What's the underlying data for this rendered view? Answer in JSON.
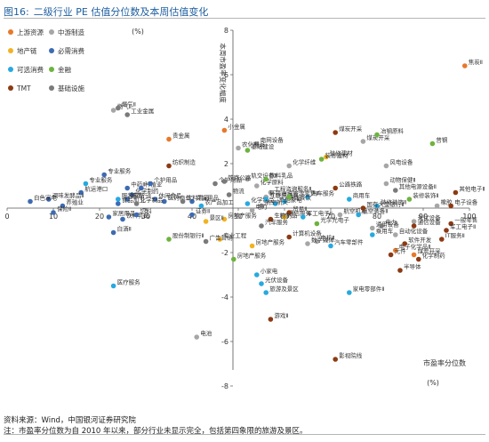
{
  "figure": {
    "label": "图16:",
    "title": "二级行业 PE 估值分位数及本周估值变化"
  },
  "notes": {
    "source": "资料来源：Wind，中国银河证券研究院",
    "remark": "注：市盈率分位数为自 2010 年以来，部分行业未显示完全，包括第四象限的旅游及景区。"
  },
  "colors": {
    "上游资源": "#e8782a",
    "中游制造": "#a6a6a6",
    "地产链": "#f0b323",
    "必需消费": "#3d6bb3",
    "可选消费": "#27a9e0",
    "金融": "#6db33f",
    "TMT": "#8c3a14",
    "基础设施": "#7a7a7a"
  },
  "chart_data": {
    "type": "scatter",
    "xlabel": "市盈率分位数",
    "xunit": "(%)",
    "ylabel": "本周市盈率变化幅度",
    "yunit": "(%)",
    "xlim": [
      0,
      100
    ],
    "ylim": [
      -8,
      8
    ],
    "xticks": [
      0,
      10,
      20,
      30,
      40,
      50,
      60,
      70,
      80,
      90,
      100
    ],
    "yticks": [
      -8,
      -6,
      -4,
      -2,
      0,
      2,
      4,
      6,
      8
    ],
    "grid": false,
    "legend_position": "top-left",
    "series": [
      {
        "name": "上游资源",
        "points": [
          {
            "x": 99,
            "y": 6.4,
            "label": "焦炭Ⅱ"
          },
          {
            "x": 35,
            "y": 3.1,
            "label": "贵金属"
          },
          {
            "x": 47,
            "y": 3.5,
            "label": "小金属"
          },
          {
            "x": 84,
            "y": -1.9,
            "label": "电子化学品Ⅱ"
          },
          {
            "x": 88,
            "y": -2.1,
            "label": "煤炭开采"
          }
        ]
      },
      {
        "name": "中游制造",
        "points": [
          {
            "x": 23,
            "y": 4.4,
            "label": "燃气Ⅱ"
          },
          {
            "x": 77,
            "y": 3.0,
            "label": "煤炭开采"
          },
          {
            "x": 54,
            "y": 2.9,
            "label": "电网设备"
          },
          {
            "x": 50,
            "y": 2.7,
            "label": "农化制品"
          },
          {
            "x": 61,
            "y": 1.9,
            "label": "化学纤维"
          },
          {
            "x": 82,
            "y": 1.9,
            "label": "风电设备"
          },
          {
            "x": 52,
            "y": 1.3,
            "label": "轨交设备Ⅱ"
          },
          {
            "x": 54,
            "y": 1.0,
            "label": "化学原料"
          },
          {
            "x": 57,
            "y": 0.7,
            "label": "工程咨询服务Ⅱ"
          },
          {
            "x": 82,
            "y": 1.1,
            "label": "动物保健Ⅱ"
          },
          {
            "x": 56,
            "y": 0.5,
            "label": "环境治理"
          },
          {
            "x": 53,
            "y": -0.1,
            "label": "电力"
          },
          {
            "x": 93,
            "y": 0.1,
            "label": "橡胶"
          },
          {
            "x": 72,
            "y": -0.3,
            "label": "航空机场"
          },
          {
            "x": 88,
            "y": -0.6,
            "label": "光伏设备"
          },
          {
            "x": 79,
            "y": -0.9,
            "label": "通用设备"
          },
          {
            "x": 84,
            "y": -1.2,
            "label": "自动化设备"
          },
          {
            "x": 67,
            "y": -1.5,
            "label": "电机Ⅱ"
          },
          {
            "x": 65,
            "y": -1.6,
            "label": "数字媒体"
          },
          {
            "x": 41,
            "y": -5.8,
            "label": "电池"
          }
        ]
      },
      {
        "name": "地产链",
        "points": [
          {
            "x": 69,
            "y": 2.3,
            "label": "装修建材"
          },
          {
            "x": 47,
            "y": -0.5,
            "label": "房地产服务"
          },
          {
            "x": 53,
            "y": -1.7,
            "label": "房地产服务"
          },
          {
            "x": 60,
            "y": -0.4,
            "label": "通信服务"
          },
          {
            "x": 43,
            "y": -0.6,
            "label": "景区Ⅱ"
          },
          {
            "x": 46,
            "y": -1.4,
            "label": "专业工程"
          }
        ]
      },
      {
        "name": "必需消费",
        "points": [
          {
            "x": 21,
            "y": 1.5,
            "label": "专业服务"
          },
          {
            "x": 16,
            "y": 0.7,
            "label": "航运港口"
          },
          {
            "x": 9,
            "y": 0.4,
            "label": "调味发酵品Ⅱ"
          },
          {
            "x": 5,
            "y": 0.3,
            "label": "白色家电"
          },
          {
            "x": 26,
            "y": 0.9,
            "label": "中药Ⅱ"
          },
          {
            "x": 27,
            "y": 0.6,
            "label": "化学制药"
          },
          {
            "x": 29,
            "y": 0.9,
            "label": "种植业"
          },
          {
            "x": 31,
            "y": 1.1,
            "label": "个护用品"
          },
          {
            "x": 32,
            "y": 0.4,
            "label": "休闲食品"
          },
          {
            "x": 26,
            "y": 0.4,
            "label": "城商行Ⅱ"
          },
          {
            "x": 24,
            "y": 0.2,
            "label": "食品加工"
          },
          {
            "x": 12,
            "y": 0.1,
            "label": "养殖业"
          },
          {
            "x": 10,
            "y": -0.2,
            "label": "保险Ⅱ"
          },
          {
            "x": 22,
            "y": -0.4,
            "label": "家居用品"
          },
          {
            "x": 25,
            "y": -0.5,
            "label": "饮料乳品"
          },
          {
            "x": 28,
            "y": -0.3,
            "label": "饲料"
          },
          {
            "x": 34,
            "y": 0.3,
            "label": "医药商业"
          },
          {
            "x": 40,
            "y": -0.3,
            "label": "证券Ⅱ"
          },
          {
            "x": 40,
            "y": 0.3,
            "label": "文娱用品"
          },
          {
            "x": 23,
            "y": -1.1,
            "label": "白酒Ⅱ"
          }
        ]
      },
      {
        "name": "可选消费",
        "points": [
          {
            "x": 17,
            "y": 1.1,
            "label": "专业服务"
          },
          {
            "x": 24,
            "y": 0.4,
            "label": "服装家纺"
          },
          {
            "x": 42,
            "y": 0.1,
            "label": "农产品加工"
          },
          {
            "x": 52,
            "y": 0.2,
            "label": "化学制品"
          },
          {
            "x": 56,
            "y": 0.4,
            "label": "互联网电商"
          },
          {
            "x": 58,
            "y": 0.2,
            "label": "黑色家电"
          },
          {
            "x": 65,
            "y": 0.5,
            "label": "汽车服务"
          },
          {
            "x": 74,
            "y": 0.4,
            "label": "商用车"
          },
          {
            "x": 80,
            "y": 0.1,
            "label": "装修装饰Ⅱ"
          },
          {
            "x": 64,
            "y": -0.4,
            "label": "军工电子Ⅱ"
          },
          {
            "x": 76,
            "y": -0.3,
            "label": "航空装备Ⅱ"
          },
          {
            "x": 79,
            "y": -1.2,
            "label": "乘用车"
          },
          {
            "x": 70,
            "y": -1.7,
            "label": "汽车零部件"
          },
          {
            "x": 54,
            "y": -3.0,
            "label": "小家电"
          },
          {
            "x": 55,
            "y": -3.4,
            "label": "光伏设备"
          },
          {
            "x": 56,
            "y": -3.8,
            "label": "旅游及景区"
          },
          {
            "x": 74,
            "y": -3.8,
            "label": "家电零部件Ⅱ"
          },
          {
            "x": 23,
            "y": -3.5,
            "label": "医疗服务"
          },
          {
            "x": 60,
            "y": 0.3,
            "label": "酒店餐饮"
          }
        ]
      },
      {
        "name": "金融",
        "points": [
          {
            "x": 92,
            "y": 2.9,
            "label": "普钢"
          },
          {
            "x": 80,
            "y": 3.3,
            "label": "冶钢原料"
          },
          {
            "x": 68,
            "y": 2.2,
            "label": "装修建材"
          },
          {
            "x": 52,
            "y": 2.6,
            "label": "基础建设"
          },
          {
            "x": 56,
            "y": 1.3,
            "label": "饮料乳品"
          },
          {
            "x": 61,
            "y": 0.5,
            "label": "旅游零售Ⅱ"
          },
          {
            "x": 87,
            "y": 0.4,
            "label": "装修装饰Ⅱ"
          },
          {
            "x": 67,
            "y": -0.7,
            "label": "光学光电子"
          },
          {
            "x": 49,
            "y": -2.3,
            "label": "房地产服务"
          },
          {
            "x": 35,
            "y": -1.4,
            "label": "股份制银行Ⅱ"
          }
        ]
      },
      {
        "name": "TMT",
        "points": [
          {
            "x": 71,
            "y": 3.4,
            "label": "煤炭开采"
          },
          {
            "x": 35,
            "y": 1.9,
            "label": "纺织制造"
          },
          {
            "x": 71,
            "y": 0.9,
            "label": "公路铁路"
          },
          {
            "x": 77,
            "y": 0.0,
            "label": "国有大型银行Ⅱ"
          },
          {
            "x": 61,
            "y": -0.2,
            "label": "贸易Ⅱ"
          },
          {
            "x": 57,
            "y": -0.5,
            "label": "生物制品"
          },
          {
            "x": 61,
            "y": -1.3,
            "label": "计算机设备"
          },
          {
            "x": 83,
            "y": -2.1,
            "label": "元件"
          },
          {
            "x": 85,
            "y": -2.8,
            "label": "半导体"
          },
          {
            "x": 57,
            "y": -5.0,
            "label": "游戏Ⅱ"
          },
          {
            "x": 71,
            "y": -6.8,
            "label": "影视院线"
          },
          {
            "x": 94,
            "y": -1.4,
            "label": "IT服务Ⅱ"
          },
          {
            "x": 86,
            "y": -1.6,
            "label": "软件开发"
          },
          {
            "x": 88,
            "y": -0.8,
            "label": "通信设备"
          },
          {
            "x": 96,
            "y": -0.7,
            "label": "一般零售"
          },
          {
            "x": 95,
            "y": -1.0,
            "label": "军工电子Ⅱ"
          },
          {
            "x": 97,
            "y": 0.7,
            "label": "其他电子Ⅱ"
          },
          {
            "x": 96,
            "y": 0.1,
            "label": "电子设备"
          },
          {
            "x": 89,
            "y": -2.3,
            "label": "化学制药"
          }
        ]
      },
      {
        "name": "基础设施",
        "points": [
          {
            "x": 24,
            "y": 4.5,
            "label": "燃气Ⅱ"
          },
          {
            "x": 26,
            "y": 4.2,
            "label": "工业金属"
          },
          {
            "x": 45,
            "y": 1.1,
            "label": "个护用品"
          },
          {
            "x": 38,
            "y": 0.3,
            "label": "饮料乳品"
          },
          {
            "x": 28,
            "y": 0.2,
            "label": "化学制品"
          },
          {
            "x": 84,
            "y": 0.8,
            "label": "其他电源设备Ⅱ"
          },
          {
            "x": 81,
            "y": -0.8,
            "label": "电力"
          },
          {
            "x": 43,
            "y": -1.5,
            "label": "广告营销"
          },
          {
            "x": 47,
            "y": 1.2,
            "label": "铁路公路"
          },
          {
            "x": 48,
            "y": 0.6,
            "label": "物流"
          },
          {
            "x": 55,
            "y": 0.1,
            "label": "航空航天"
          },
          {
            "x": 55,
            "y": -0.8,
            "label": "汽车服务"
          }
        ]
      }
    ]
  }
}
